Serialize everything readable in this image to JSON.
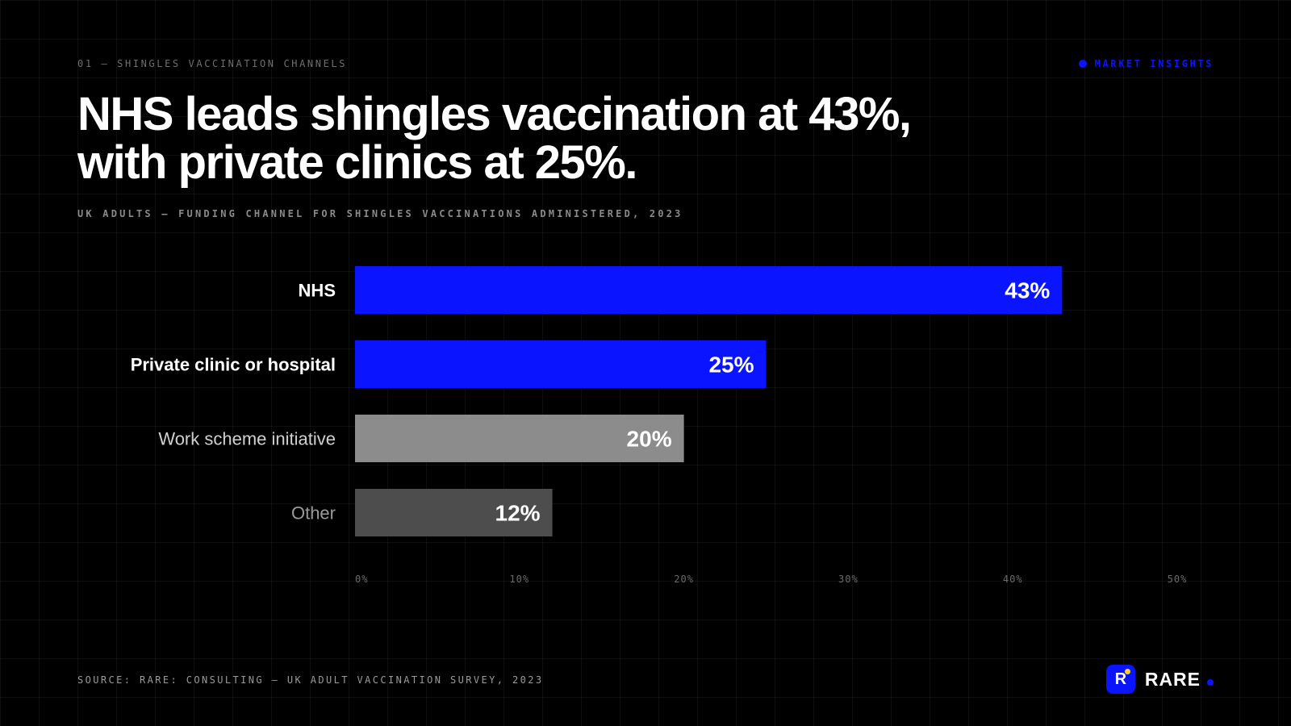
{
  "eyebrow": "01 — SHINGLES VACCINATION CHANNELS",
  "tag": {
    "label": "MARKET INSIGHTS"
  },
  "headline": {
    "line1": "NHS leads shingles vaccination at 43%,",
    "line2": "with private clinics at 25%."
  },
  "subtitle": "UK ADULTS — FUNDING CHANNEL FOR SHINGLES VACCINATIONS ADMINISTERED, 2023",
  "source": "SOURCE: RARE: CONSULTING — UK ADULT VACCINATION SURVEY, 2023",
  "brand": {
    "mark": "R",
    "name": "RARE",
    "icon": "rare-logo-icon"
  },
  "colors": {
    "accent": "#0a14ff",
    "highlight_bar": "#0a14ff",
    "mid_bar": "#8c8c8c",
    "low_bar": "#4d4d4d",
    "background": "#000000"
  },
  "chart_data": {
    "type": "bar",
    "orientation": "horizontal",
    "categories": [
      "NHS",
      "Private clinic or hospital",
      "Work scheme initiative",
      "Other"
    ],
    "values": [
      43,
      25,
      20,
      12
    ],
    "value_labels": [
      "43%",
      "25%",
      "20%",
      "12%"
    ],
    "bar_colors": [
      "#0a14ff",
      "#0a14ff",
      "#8c8c8c",
      "#4d4d4d"
    ],
    "label_colors": [
      "#ffffff",
      "#ffffff",
      "#d0d0d0",
      "#9a9a9a"
    ],
    "xticks": [
      0,
      10,
      20,
      30,
      40,
      50
    ],
    "xtick_labels": [
      "0%",
      "10%",
      "20%",
      "30%",
      "40%",
      "50%"
    ],
    "xlim": [
      0,
      50
    ],
    "grid": true,
    "legend": "none"
  }
}
